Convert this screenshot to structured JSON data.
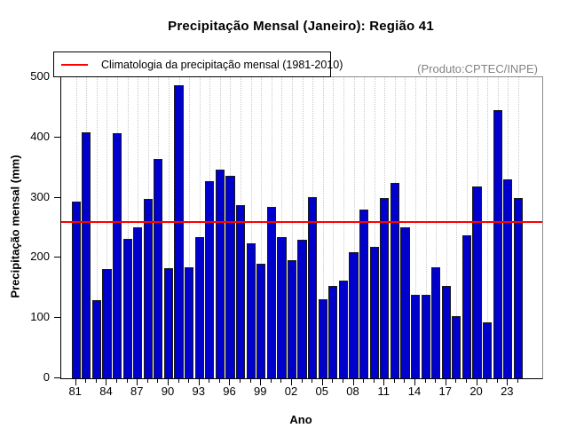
{
  "chart_data": {
    "type": "bar",
    "title": "Precipitação Mensal (Janeiro): Região 41",
    "xlabel": "Ano",
    "ylabel": "Precipitação mensal (mm)",
    "annotation": "(Produto:CPTEC/INPE)",
    "legend": {
      "label": "Climatologia da precipitação mensal (1981-2010)",
      "line_color": "#ff0000",
      "position": "top-left"
    },
    "years": [
      1981,
      1982,
      1983,
      1984,
      1985,
      1986,
      1987,
      1988,
      1989,
      1990,
      1991,
      1992,
      1993,
      1994,
      1995,
      1996,
      1997,
      1998,
      1999,
      2000,
      2001,
      2002,
      2003,
      2004,
      2005,
      2006,
      2007,
      2008,
      2009,
      2010,
      2011,
      2012,
      2013,
      2014,
      2015,
      2016,
      2017,
      2018,
      2019,
      2020,
      2021,
      2022,
      2023,
      2024
    ],
    "values": [
      294,
      409,
      130,
      181,
      407,
      231,
      251,
      298,
      365,
      183,
      487,
      185,
      234,
      327,
      347,
      337,
      287,
      224,
      190,
      285,
      235,
      196,
      230,
      301,
      131,
      154,
      163,
      210,
      280,
      219,
      299,
      325,
      251,
      138,
      139,
      185,
      154,
      103,
      237,
      318,
      93,
      446,
      331,
      300
    ],
    "climatology_value": 259,
    "x_tick_labels": [
      "81",
      "84",
      "87",
      "90",
      "93",
      "96",
      "99",
      "02",
      "05",
      "08",
      "11",
      "14",
      "17",
      "20",
      "23"
    ],
    "x_label_step": 3,
    "y_ticks": [
      0,
      100,
      200,
      300,
      400,
      500
    ],
    "ylim": [
      0,
      500
    ],
    "grid": "vertical-dotted",
    "gridline_color": "#c9c9c9",
    "bar_color": "#0000CC",
    "bar_border_color": "#1a1a1a",
    "line_color": "#ff0000",
    "annotation_color": "#848484",
    "legend_border": "#000000"
  }
}
